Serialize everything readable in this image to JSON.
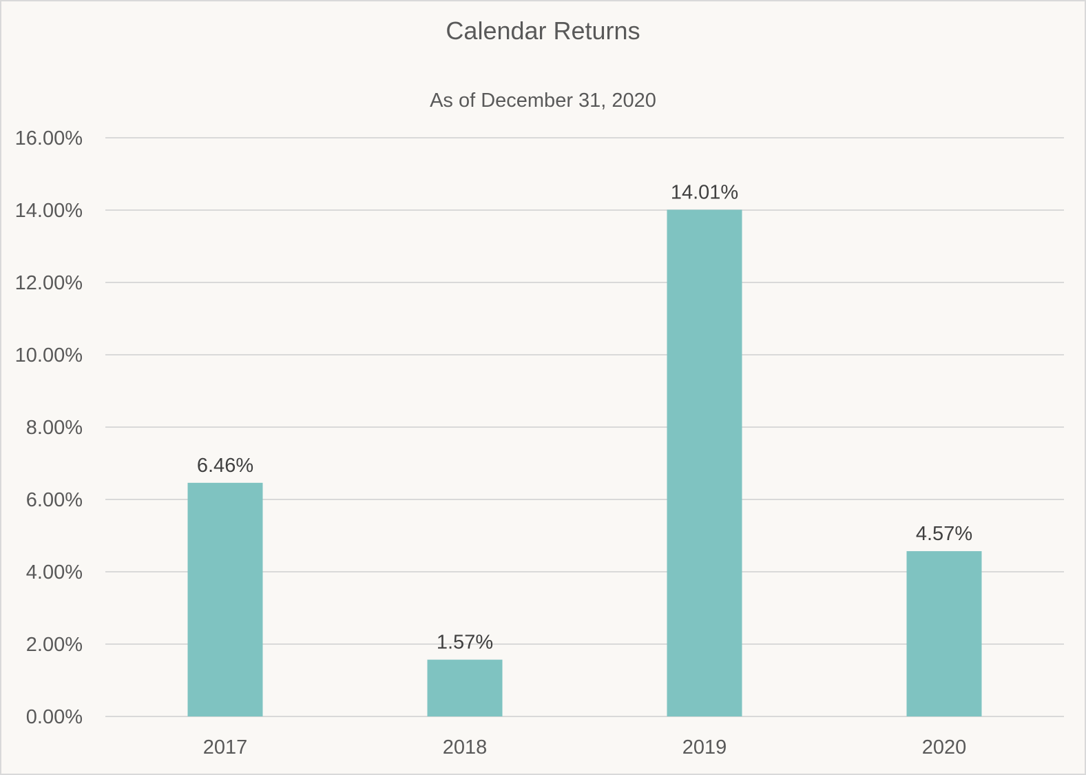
{
  "chart_data": {
    "type": "bar",
    "title": "Calendar Returns",
    "subtitle": "As of December 31, 2020",
    "categories": [
      "2017",
      "2018",
      "2019",
      "2020"
    ],
    "values": [
      6.46,
      1.57,
      14.01,
      4.57
    ],
    "data_labels": [
      "6.46%",
      "1.57%",
      "14.01%",
      "4.57%"
    ],
    "ylim": [
      0,
      16
    ],
    "yticks": [
      0,
      2,
      4,
      6,
      8,
      10,
      12,
      14,
      16
    ],
    "ytick_labels": [
      "0.00%",
      "2.00%",
      "4.00%",
      "6.00%",
      "8.00%",
      "10.00%",
      "12.00%",
      "14.00%",
      "16.00%"
    ],
    "grid": true,
    "legend": "none",
    "colors": {
      "bar": "#7fc3c1",
      "grid": "#d9d9d9",
      "text": "#595959",
      "background": "#faf8f5"
    }
  }
}
